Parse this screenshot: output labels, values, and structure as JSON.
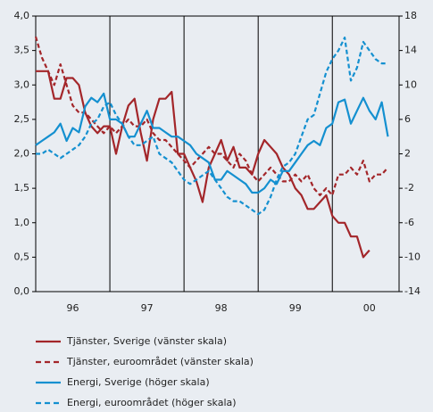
{
  "chart_data": {
    "type": "line",
    "x": [
      1996,
      1996.083,
      1996.167,
      1996.25,
      1996.333,
      1996.417,
      1996.5,
      1996.583,
      1996.667,
      1996.75,
      1996.833,
      1996.917,
      1997,
      1997.083,
      1997.167,
      1997.25,
      1997.333,
      1997.417,
      1997.5,
      1997.583,
      1997.667,
      1997.75,
      1997.833,
      1997.917,
      1998,
      1998.083,
      1998.167,
      1998.25,
      1998.333,
      1998.417,
      1998.5,
      1998.583,
      1998.667,
      1998.75,
      1998.833,
      1998.917,
      1999,
      1999.083,
      1999.167,
      1999.25,
      1999.333,
      1999.417,
      1999.5,
      1999.583,
      1999.667,
      1999.75,
      1999.833,
      1999.917,
      2000,
      2000.083,
      2000.167,
      2000.25,
      2000.333,
      2000.417,
      2000.5,
      2000.583,
      2000.667,
      2000.75
    ],
    "xlim": [
      1996,
      2000.9
    ],
    "xticks": [
      {
        "value": 1996.5,
        "label": "96"
      },
      {
        "value": 1997.5,
        "label": "97"
      },
      {
        "value": 1998.5,
        "label": "98"
      },
      {
        "value": 1999.5,
        "label": "99"
      },
      {
        "value": 2000.5,
        "label": "00"
      }
    ],
    "xgrid": [
      1997,
      1998,
      1999,
      2000
    ],
    "ylim": [
      0,
      4
    ],
    "yticks": [
      {
        "value": 0,
        "label": "0,0"
      },
      {
        "value": 0.5,
        "label": "0,5"
      },
      {
        "value": 1,
        "label": "1,0"
      },
      {
        "value": 1.5,
        "label": "1,5"
      },
      {
        "value": 2,
        "label": "2,0"
      },
      {
        "value": 2.5,
        "label": "2,5"
      },
      {
        "value": 3,
        "label": "3,0"
      },
      {
        "value": 3.5,
        "label": "3,5"
      },
      {
        "value": 4,
        "label": "4,0"
      }
    ],
    "y2lim": [
      -14,
      18
    ],
    "y2ticks": [
      -14,
      -10,
      -6,
      -2,
      2,
      6,
      10,
      14,
      18
    ],
    "series": [
      {
        "name": "Tjänster, Sverige (vänster skala)",
        "color": "#a3262a",
        "dashed": false,
        "axis": "y",
        "values": [
          3.2,
          3.2,
          3.2,
          2.8,
          2.8,
          3.1,
          3.1,
          3.0,
          2.6,
          2.4,
          2.3,
          2.4,
          2.4,
          2.0,
          2.4,
          2.7,
          2.8,
          2.3,
          1.9,
          2.5,
          2.8,
          2.8,
          2.9,
          2.0,
          2.0,
          1.8,
          1.6,
          1.3,
          1.8,
          2.0,
          2.2,
          1.9,
          2.1,
          1.8,
          1.8,
          1.7,
          2.0,
          2.2,
          2.1,
          2.0,
          1.8,
          1.7,
          1.5,
          1.4,
          1.2,
          1.2,
          1.3,
          1.4,
          1.1,
          1.0,
          1.0,
          0.8,
          0.8,
          0.5,
          0.6,
          null,
          null,
          null
        ]
      },
      {
        "name": "Tjänster, euroområdet (vänster skala)",
        "color": "#a3262a",
        "dashed": true,
        "axis": "y",
        "values": [
          3.7,
          3.4,
          3.2,
          3.0,
          3.3,
          3.0,
          2.7,
          2.6,
          2.6,
          2.5,
          2.4,
          2.3,
          2.4,
          2.3,
          2.4,
          2.5,
          2.4,
          2.4,
          2.5,
          2.3,
          2.2,
          2.2,
          2.1,
          2.0,
          1.9,
          1.8,
          1.9,
          2.0,
          2.1,
          2.0,
          2.0,
          1.9,
          1.8,
          2.0,
          1.9,
          1.7,
          1.6,
          1.7,
          1.8,
          1.7,
          1.6,
          1.6,
          1.7,
          1.6,
          1.7,
          1.5,
          1.4,
          1.5,
          1.4,
          1.7,
          1.7,
          1.8,
          1.7,
          1.9,
          1.6,
          1.7,
          1.7,
          1.8
        ]
      },
      {
        "name": "Energi, Sverige (höger skala)",
        "color": "#1490d0",
        "dashed": false,
        "axis": "y2",
        "values": [
          3,
          3.5,
          4,
          4.5,
          5.5,
          3.5,
          5,
          4.5,
          7.5,
          8.5,
          8,
          9,
          6,
          6,
          5.5,
          4,
          4,
          5.5,
          7,
          5,
          5,
          4.5,
          4,
          4,
          3.5,
          3,
          2,
          1.5,
          1,
          -1,
          -1,
          0,
          -0.5,
          -1,
          -1.5,
          -2.5,
          -2.5,
          -2,
          -1,
          -1.5,
          0,
          0,
          1,
          2,
          3,
          3.5,
          3,
          5,
          5.5,
          8,
          8.3,
          5.5,
          7,
          8.5,
          7,
          6,
          8,
          4
        ]
      },
      {
        "name": "Energi, euroområdet (höger skala)",
        "color": "#1490d0",
        "dashed": true,
        "axis": "y2",
        "values": [
          2,
          2,
          2.5,
          2,
          1.5,
          2,
          2.5,
          3,
          4,
          5.5,
          6,
          7.5,
          8,
          6.5,
          5.5,
          4,
          3,
          3,
          3.5,
          4,
          2,
          1.5,
          1,
          0,
          -1,
          -1.5,
          -1,
          -0.5,
          0,
          -1,
          -2,
          -3,
          -3.5,
          -3.5,
          -4,
          -4.5,
          -5,
          -4.5,
          -3,
          -1,
          0.5,
          1,
          2,
          4,
          6,
          6.5,
          9,
          11.5,
          13,
          14,
          15.5,
          10.5,
          12,
          15,
          14,
          13,
          12.5,
          12.5
        ]
      }
    ]
  }
}
